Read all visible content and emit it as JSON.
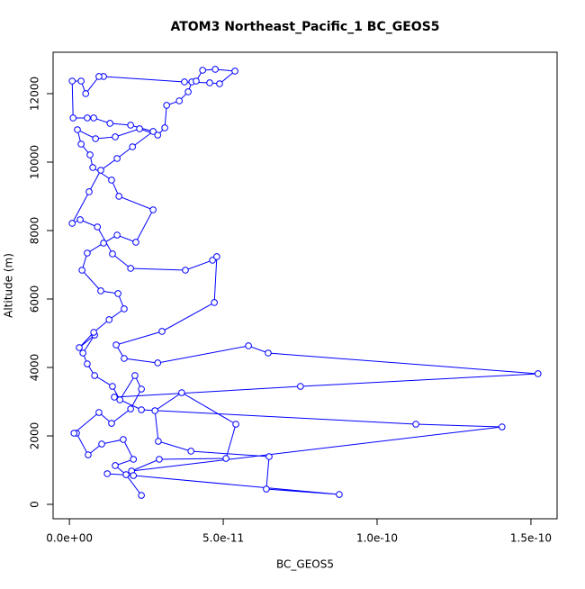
{
  "chart_data": {
    "type": "line",
    "title": "ATOM3 Northeast_Pacific_1 BC_GEOS5",
    "xlabel": "BC_GEOS5",
    "ylabel": "Altitude (m)",
    "color": "#0000ff",
    "points": true,
    "xlim": [
      -5.3e-12,
      1.585e-10
    ],
    "ylim": [
      -421,
      13210
    ],
    "xticks": [
      {
        "value": 0,
        "label": "0.0e+00"
      },
      {
        "value": 5e-11,
        "label": "5.0e-11"
      },
      {
        "value": 1e-10,
        "label": "1.0e-10"
      },
      {
        "value": 1.5e-10,
        "label": "1.5e-10"
      }
    ],
    "yticks": [
      0,
      2000,
      4000,
      6000,
      8000,
      10000,
      12000
    ],
    "x": [
      2.34e-11,
      1.84e-11,
      1.49e-11,
      2.08e-11,
      1.75e-11,
      1.05e-11,
      6.1e-12,
      2.3e-12,
      1.5e-12,
      9.6e-12,
      1.37e-11,
      1.99e-11,
      2.34e-11,
      2.13e-11,
      1.64e-11,
      1.4e-11,
      8.2e-12,
      5.8e-12,
      4.4e-12,
      8.2e-12,
      3.2e-12,
      7.9e-12,
      1.29e-11,
      1.78e-11,
      1.58e-11,
      1.02e-11,
      4.1e-12,
      5.8e-12,
      1.11e-11,
      1.55e-11,
      2.16e-11,
      2.72e-11,
      1.61e-11,
      1.37e-11,
      7.6e-12,
      6.7e-12,
      3.8e-12,
      2.6e-12,
      8.5e-12,
      1.49e-11,
      2.28e-11,
      2.87e-11,
      3.1e-11,
      3.16e-11,
      3.57e-11,
      3.86e-11,
      3.98e-11,
      4.12e-11,
      4.33e-11,
      4.74e-11,
      5.38e-11,
      4.88e-11,
      4.56e-11,
      3.74e-11,
      1.11e-11,
      9.6e-12,
      5.3e-12,
      3.8e-12,
      9e-13,
      1.2e-12,
      5.8e-12,
      7.9e-12,
      1.32e-11,
      1.99e-11,
      2.72e-11,
      2.05e-11,
      1.55e-11,
      1.02e-11,
      6.4e-12,
      9e-13,
      3.5e-12,
      9.1e-12,
      1.4e-11,
      1.99e-11,
      3.77e-11,
      4.65e-11,
      4.79e-11,
      4.71e-11,
      3.01e-11,
      1.52e-11,
      1.78e-11,
      2.87e-11,
      5.82e-11,
      6.46e-11,
      1.523e-10,
      7.51e-11,
      1.46e-11,
      2.34e-11,
      1.126e-10,
      1.406e-10,
      2.02e-11,
      2.92e-11,
      5.09e-11,
      5.41e-11,
      3.65e-11,
      2.78e-11,
      2.89e-11,
      3.95e-11,
      6.49e-11,
      6.4e-11,
      8.77e-11,
      2.08e-11,
      1.23e-11
    ],
    "y": [
      263,
      868,
      1132,
      1316,
      1895,
      1763,
      1447,
      2079,
      2079,
      2684,
      2368,
      2789,
      3368,
      3763,
      3053,
      3447,
      3763,
      4105,
      4421,
      4947,
      4579,
      5026,
      5395,
      5711,
      6158,
      6237,
      6842,
      7342,
      7632,
      7868,
      7658,
      8605,
      9000,
      9474,
      9842,
      10211,
      10526,
      10947,
      10684,
      10737,
      10974,
      10789,
      11000,
      11658,
      11789,
      12053,
      12342,
      12368,
      12684,
      12711,
      12658,
      12289,
      12316,
      12342,
      12500,
      12500,
      12000,
      12368,
      12368,
      11290,
      11290,
      11290,
      11132,
      11079,
      10895,
      10447,
      10105,
      9763,
      9132,
      8211,
      8316,
      8105,
      7316,
      6895,
      6842,
      7132,
      7237,
      5895,
      5053,
      4658,
      4263,
      4132,
      4632,
      4421,
      3816,
      3447,
      3132,
      2763,
      2342,
      2263,
      974,
      1316,
      1342,
      2342,
      3263,
      2737,
      1842,
      1553,
      1395,
      447,
      289,
      842,
      895
    ]
  }
}
